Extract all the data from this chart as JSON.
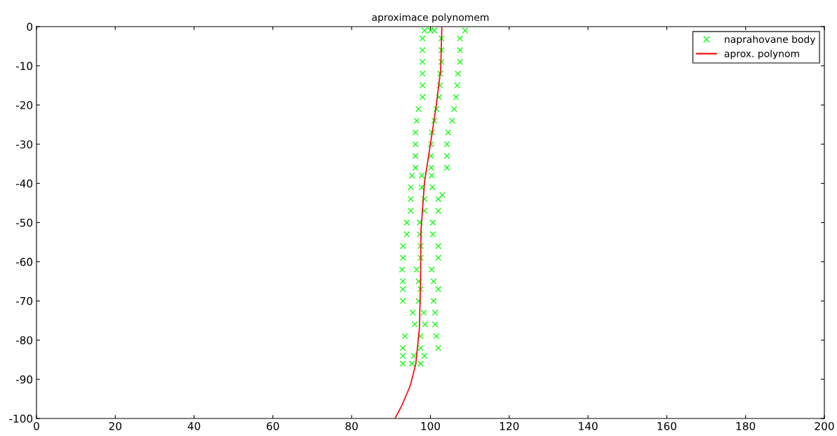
{
  "chart_data": {
    "type": "scatter",
    "title": "aproximace polynomem",
    "xlim": [
      0,
      200
    ],
    "xticks": [
      0,
      20,
      40,
      60,
      80,
      100,
      120,
      140,
      160,
      180,
      200
    ],
    "ylim": [
      -100,
      0
    ],
    "yticks": [
      -100,
      -90,
      -80,
      -70,
      -60,
      -50,
      -40,
      -30,
      -20,
      -10,
      0
    ],
    "grid": false,
    "legend": "top right",
    "series": [
      {
        "name": "naprahovane body",
        "marker": "cross",
        "color": "#00ff00",
        "x": [
          98.5,
          100,
          101,
          108.8,
          98,
          102.8,
          107.5,
          98,
          102.8,
          107.5,
          98,
          102.8,
          107.5,
          98,
          102.5,
          107,
          98,
          102.4,
          106.8,
          98,
          102.2,
          106.5,
          97,
          101.5,
          106,
          96.5,
          101,
          105.5,
          96.2,
          100.4,
          104.5,
          96.2,
          100.2,
          104.2,
          96.2,
          100.2,
          104.2,
          96.2,
          100.2,
          104.2,
          95.3,
          97.8,
          100.3,
          95,
          97.8,
          100.5,
          103,
          95,
          98.5,
          102,
          95,
          98.5,
          102,
          94,
          97.3,
          100.6,
          94,
          97.3,
          100.6,
          93,
          97.5,
          102,
          93,
          97.5,
          102,
          92.8,
          96.5,
          100.3,
          93,
          97,
          100.8,
          93,
          97.5,
          102,
          93,
          97,
          100.8,
          95.5,
          98.3,
          101.2,
          96,
          98.6,
          101.2,
          93.5,
          97.5,
          101.5,
          93,
          97.5,
          102,
          93,
          95.8,
          98.5,
          93,
          95.3,
          97.5
        ],
        "values": [
          -1,
          -1,
          -1,
          -1,
          -3,
          -3,
          -3,
          -6,
          -6,
          -6,
          -9,
          -9,
          -9,
          -12,
          -12,
          -12,
          -15,
          -15,
          -15,
          -18,
          -18,
          -18,
          -21,
          -21,
          -21,
          -24,
          -24,
          -24,
          -27,
          -27,
          -27,
          -30,
          -30,
          -30,
          -33,
          -33,
          -33,
          -36,
          -36,
          -36,
          -38,
          -38,
          -38,
          -41,
          -41,
          -41,
          -43,
          -44,
          -44,
          -44,
          -47,
          -47,
          -47,
          -50,
          -50,
          -50,
          -53,
          -53,
          -53,
          -56,
          -56,
          -56,
          -59,
          -59,
          -59,
          -62,
          -62,
          -62,
          -65,
          -65,
          -65,
          -67,
          -67,
          -67,
          -70,
          -70,
          -70,
          -73,
          -73,
          -73,
          -76,
          -76,
          -76,
          -79,
          -79,
          -79,
          -82,
          -82,
          -82,
          -84,
          -84,
          -84,
          -86,
          -86,
          -86
        ]
      },
      {
        "name": "aprox. polynom",
        "type": "line",
        "marker": "none",
        "line_style": "solid",
        "color": "#ff0000",
        "x": [
          102.9,
          102.6,
          101.5,
          100,
          98.5,
          97.6,
          97.5,
          97.2,
          96.3,
          94.9,
          92.6,
          91
        ],
        "values": [
          0,
          -11,
          -20,
          -30,
          -39.7,
          -52,
          -65,
          -77,
          -86,
          -91.6,
          -97,
          -100
        ]
      }
    ]
  }
}
